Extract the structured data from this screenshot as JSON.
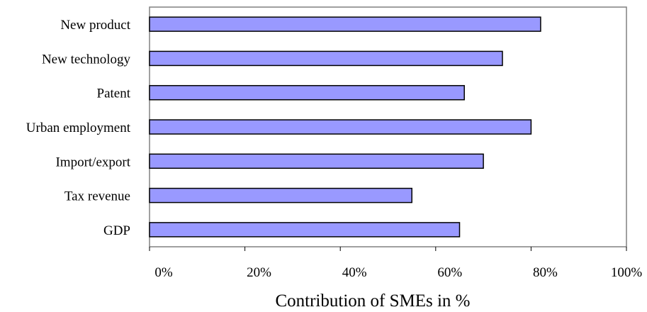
{
  "chart_data": {
    "type": "bar",
    "orientation": "horizontal",
    "categories": [
      "New product",
      "New technology",
      "Patent",
      "Urban employment",
      "Import/export",
      "Tax revenue",
      "GDP"
    ],
    "values": [
      82,
      74,
      66,
      80,
      70,
      55,
      65
    ],
    "xlabel": "Contribution of SMEs in %",
    "ylabel": "",
    "xlim": [
      0,
      100
    ],
    "x_ticks": [
      "0%",
      "20%",
      "40%",
      "60%",
      "80%",
      "100%"
    ],
    "grid": false,
    "legend": "none",
    "colors": {
      "bar_fill": "#9999ff",
      "bar_stroke": "#000000",
      "frame": "#808080"
    }
  }
}
